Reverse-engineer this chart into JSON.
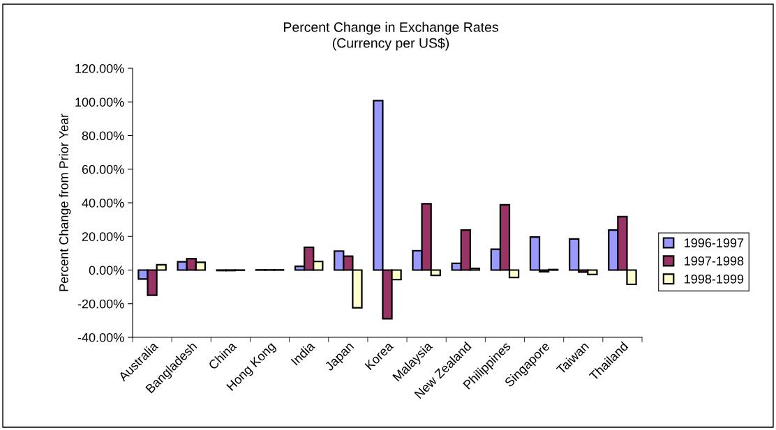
{
  "chart_data": {
    "type": "bar",
    "title": "Percent Change in Exchange Rates",
    "subtitle": "(Currency per US$)",
    "ylabel": "Percent Change from Prior Year",
    "categories": [
      "Australia",
      "Bangladesh",
      "China",
      "Hong Kong",
      "India",
      "Japan",
      "Korea",
      "Malaysia",
      "New Zealand",
      "Philippines",
      "Singapore",
      "Taiwan",
      "Thailand"
    ],
    "series": [
      {
        "name": "1996-1997",
        "color": "#9999ff",
        "values": [
          -5.3,
          4.9,
          -0.3,
          0.1,
          2.2,
          11.3,
          100.8,
          11.5,
          4.0,
          12.4,
          19.6,
          18.5,
          23.8
        ]
      },
      {
        "name": "1997-1998",
        "color": "#993366",
        "values": [
          -15.0,
          6.8,
          -0.3,
          0.1,
          13.5,
          8.2,
          -29.0,
          39.4,
          23.8,
          38.8,
          -1.0,
          -1.2,
          31.8
        ]
      },
      {
        "name": "1998-1999",
        "color": "#ffffcc",
        "values": [
          3.2,
          4.6,
          -0.1,
          0.1,
          5.1,
          -22.4,
          -5.7,
          -3.2,
          1.0,
          -4.4,
          0.3,
          -2.6,
          -8.5
        ]
      }
    ],
    "ylim": [
      -40,
      120
    ],
    "yticks": [
      {
        "value": -40,
        "label": "-40.00%"
      },
      {
        "value": -20,
        "label": "-20.00%"
      },
      {
        "value": 0,
        "label": "0.00%"
      },
      {
        "value": 20,
        "label": "20.00%"
      },
      {
        "value": 40,
        "label": "40.00%"
      },
      {
        "value": 60,
        "label": "60.00%"
      },
      {
        "value": 80,
        "label": "80.00%"
      },
      {
        "value": 100,
        "label": "100.00%"
      },
      {
        "value": 120,
        "label": "120.00%"
      }
    ],
    "grid": false,
    "legend": "right"
  }
}
